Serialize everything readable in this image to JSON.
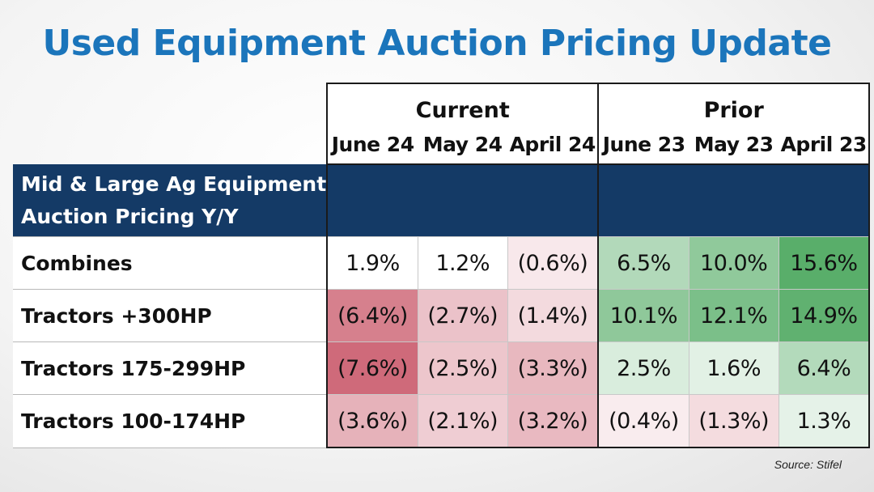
{
  "title": "Used Equipment Auction Pricing Update",
  "source": "Source: Stifel",
  "colors": {
    "title": "#1b75bb",
    "header_band": "#143a66",
    "negative_strong": "#cf6a7a",
    "positive_strong": "#59ae6a"
  },
  "chart_data": {
    "type": "table",
    "title": "Used Equipment Auction Pricing Update",
    "row_header": "Mid & Large Ag Equipment Auction Pricing Y/Y",
    "row_header_lines": [
      "Mid & Large Ag Equipment",
      "Auction Pricing Y/Y"
    ],
    "groups": [
      {
        "name": "Current",
        "columns": [
          "June 24",
          "May 24",
          "April 24"
        ]
      },
      {
        "name": "Prior",
        "columns": [
          "June 23",
          "May 23",
          "April 23"
        ]
      }
    ],
    "columns": [
      "June 24",
      "May 24",
      "April 24",
      "June 23",
      "May 23",
      "April 23"
    ],
    "rows": [
      {
        "label": "Combines",
        "values": [
          1.9,
          1.2,
          -0.6,
          6.5,
          10.0,
          15.6
        ],
        "display": [
          "1.9%",
          "1.2%",
          "(0.6%)",
          "6.5%",
          "10.0%",
          "15.6%"
        ]
      },
      {
        "label": "Tractors +300HP",
        "values": [
          -6.4,
          -2.7,
          -1.4,
          10.1,
          12.1,
          14.9
        ],
        "display": [
          "(6.4%)",
          "(2.7%)",
          "(1.4%)",
          "10.1%",
          "12.1%",
          "14.9%"
        ]
      },
      {
        "label": "Tractors 175-299HP",
        "values": [
          -7.6,
          -2.5,
          -3.3,
          2.5,
          1.6,
          6.4
        ],
        "display": [
          "(7.6%)",
          "(2.5%)",
          "(3.3%)",
          "2.5%",
          "1.6%",
          "6.4%"
        ]
      },
      {
        "label": "Tractors 100-174HP",
        "values": [
          -3.6,
          -2.1,
          -3.2,
          -0.4,
          -1.3,
          1.3
        ],
        "display": [
          "(3.6%)",
          "(2.1%)",
          "(3.2%)",
          "(0.4%)",
          "(1.3%)",
          "1.3%"
        ]
      }
    ],
    "unit": "%",
    "source": "Source: Stifel"
  }
}
